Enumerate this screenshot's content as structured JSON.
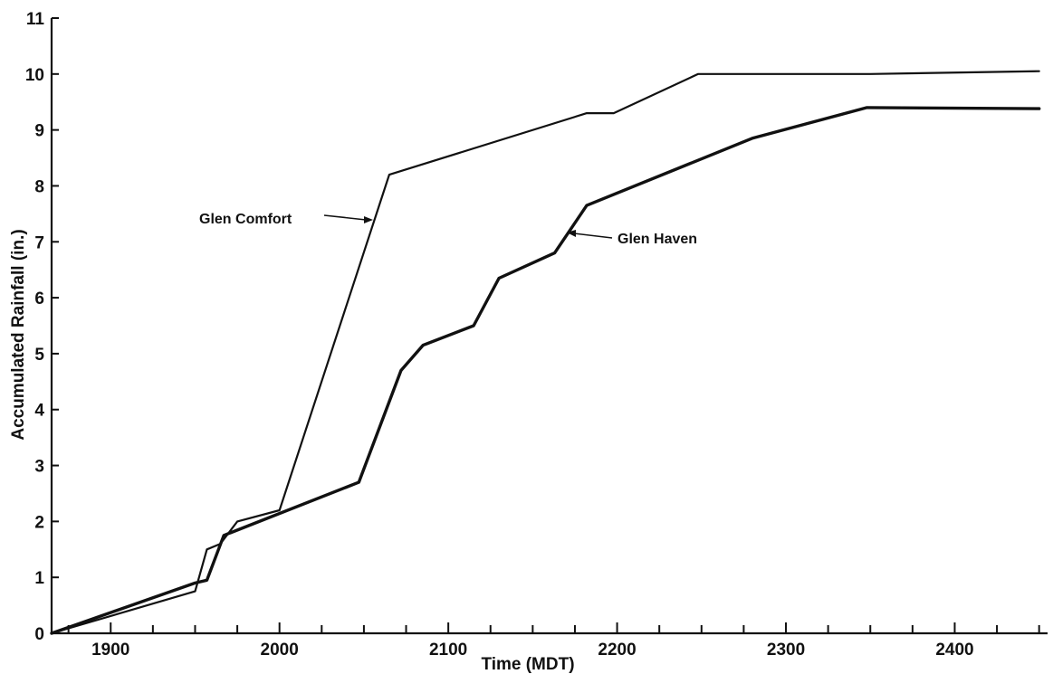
{
  "chart_data": {
    "type": "line",
    "title": "",
    "xlabel": "Time (MDT)",
    "ylabel": "Accumulated Rainfall (in.)",
    "xlim": [
      1865,
      2455
    ],
    "ylim": [
      0,
      11
    ],
    "x_ticks": [
      "1900",
      "2000",
      "2100",
      "2200",
      "2300",
      "2400"
    ],
    "y_ticks": [
      "0",
      "1",
      "2",
      "3",
      "4",
      "5",
      "6",
      "7",
      "8",
      "9",
      "10",
      "11"
    ],
    "grid": false,
    "legend": "none",
    "series": [
      {
        "name": "Glen Comfort",
        "line_color": "#111111",
        "points": [
          [
            1865,
            0
          ],
          [
            1950,
            0.75
          ],
          [
            1957,
            1.5
          ],
          [
            1965,
            1.6
          ],
          [
            1975,
            2.0
          ],
          [
            2000,
            2.2
          ],
          [
            2065,
            8.2
          ],
          [
            2182,
            9.3
          ],
          [
            2198,
            9.3
          ],
          [
            2248,
            10.0
          ],
          [
            2350,
            10.0
          ],
          [
            2450,
            10.05
          ]
        ]
      },
      {
        "name": "Glen Haven",
        "line_color": "#111111",
        "points": [
          [
            1865,
            0
          ],
          [
            1950,
            0.9
          ],
          [
            1957,
            0.95
          ],
          [
            1967,
            1.75
          ],
          [
            2047,
            2.7
          ],
          [
            2072,
            4.7
          ],
          [
            2085,
            5.15
          ],
          [
            2115,
            5.5
          ],
          [
            2130,
            6.35
          ],
          [
            2163,
            6.8
          ],
          [
            2182,
            7.65
          ],
          [
            2280,
            8.85
          ],
          [
            2348,
            9.4
          ],
          [
            2450,
            9.38
          ]
        ]
      }
    ],
    "annotations": [
      {
        "text": "Glen Comfort",
        "series": "Glen Comfort"
      },
      {
        "text": "Glen Haven",
        "series": "Glen Haven"
      }
    ]
  }
}
